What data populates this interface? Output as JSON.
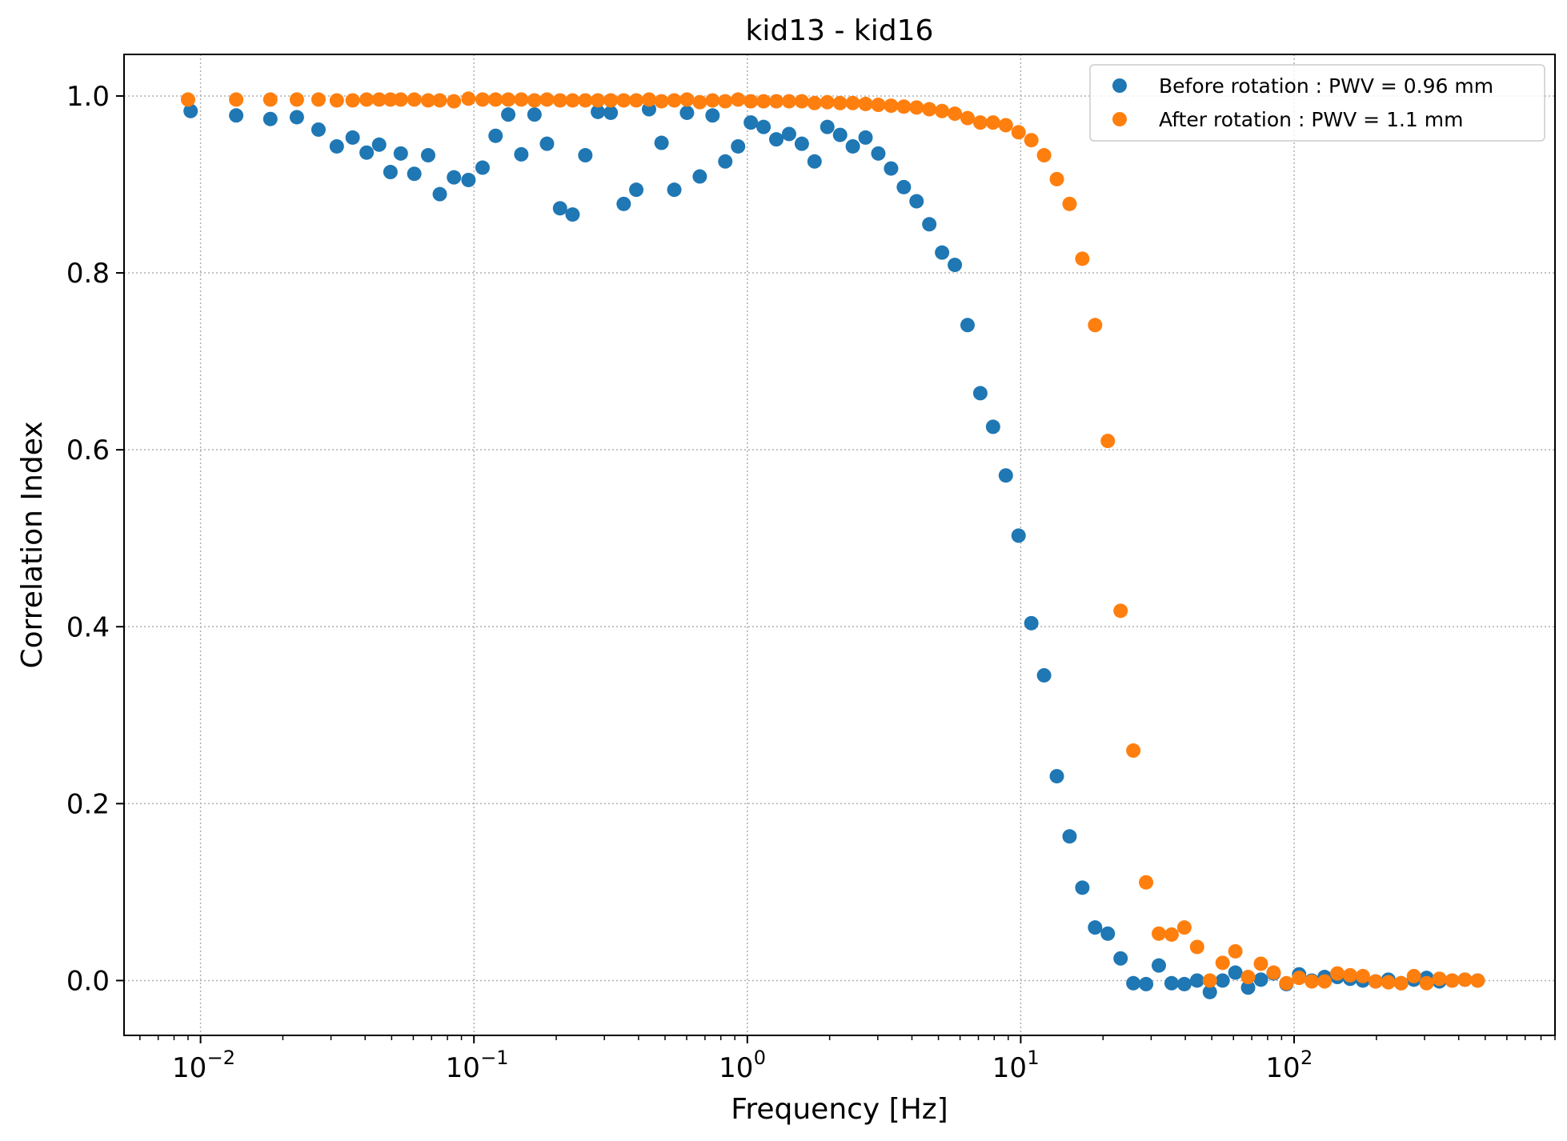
{
  "chart_data": {
    "type": "scatter",
    "title": "kid13 - kid16",
    "xlabel": "Frequency [Hz]",
    "ylabel": "Correlation Index",
    "xscale": "log",
    "xlim": [
      0.00525,
      900
    ],
    "ylim": [
      -0.062,
      1.047
    ],
    "grid": true,
    "legend_position": "top-right",
    "x_tick_labels": [
      {
        "value": 0.01,
        "base": "10",
        "exp": "−2"
      },
      {
        "value": 0.1,
        "base": "10",
        "exp": "−1"
      },
      {
        "value": 1,
        "base": "10",
        "exp": "0"
      },
      {
        "value": 10,
        "base": "10",
        "exp": "1"
      },
      {
        "value": 100,
        "base": "10",
        "exp": "2"
      }
    ],
    "y_ticks": [
      0.0,
      0.2,
      0.4,
      0.6,
      0.8,
      1.0
    ],
    "y_tick_labels": [
      "0.0",
      "0.2",
      "0.4",
      "0.6",
      "0.8",
      "1.0"
    ],
    "series": [
      {
        "name": "Before rotation : PWV = 0.96 mm",
        "color": "#1f77b4",
        "points": [
          [
            0.0092,
            0.983
          ],
          [
            0.0135,
            0.978
          ],
          [
            0.018,
            0.974
          ],
          [
            0.0225,
            0.976
          ],
          [
            0.027,
            0.962
          ],
          [
            0.0315,
            0.943
          ],
          [
            0.036,
            0.953
          ],
          [
            0.0405,
            0.936
          ],
          [
            0.045,
            0.945
          ],
          [
            0.0495,
            0.914
          ],
          [
            0.054,
            0.935
          ],
          [
            0.0605,
            0.912
          ],
          [
            0.068,
            0.933
          ],
          [
            0.075,
            0.889
          ],
          [
            0.0845,
            0.908
          ],
          [
            0.0955,
            0.905
          ],
          [
            0.1075,
            0.919
          ],
          [
            0.12,
            0.955
          ],
          [
            0.1335,
            0.979
          ],
          [
            0.149,
            0.934
          ],
          [
            0.1665,
            0.979
          ],
          [
            0.185,
            0.946
          ],
          [
            0.2065,
            0.873
          ],
          [
            0.2295,
            0.866
          ],
          [
            0.2555,
            0.933
          ],
          [
            0.284,
            0.982
          ],
          [
            0.3165,
            0.981
          ],
          [
            0.353,
            0.878
          ],
          [
            0.3925,
            0.894
          ],
          [
            0.437,
            0.985
          ],
          [
            0.4855,
            0.947
          ],
          [
            0.5405,
            0.894
          ],
          [
            0.6015,
            0.981
          ],
          [
            0.67,
            0.909
          ],
          [
            0.746,
            0.978
          ],
          [
            0.8305,
            0.926
          ],
          [
            0.925,
            0.943
          ],
          [
            1.03,
            0.97
          ],
          [
            1.1465,
            0.965
          ],
          [
            1.2765,
            0.951
          ],
          [
            1.421,
            0.957
          ],
          [
            1.5825,
            0.946
          ],
          [
            1.7615,
            0.926
          ],
          [
            1.9615,
            0.965
          ],
          [
            2.184,
            0.956
          ],
          [
            2.431,
            0.943
          ],
          [
            2.7065,
            0.953
          ],
          [
            3.0135,
            0.935
          ],
          [
            3.3555,
            0.918
          ],
          [
            3.736,
            0.897
          ],
          [
            4.159,
            0.881
          ],
          [
            4.63,
            0.855
          ],
          [
            5.1555,
            0.823
          ],
          [
            5.7405,
            0.809
          ],
          [
            6.391,
            0.741
          ],
          [
            7.115,
            0.664
          ],
          [
            7.922,
            0.626
          ],
          [
            8.8205,
            0.571
          ],
          [
            9.8205,
            0.503
          ],
          [
            10.934,
            0.404
          ],
          [
            12.173,
            0.345
          ],
          [
            13.553,
            0.231
          ],
          [
            15.09,
            0.163
          ],
          [
            16.8,
            0.105
          ],
          [
            18.706,
            0.06
          ],
          [
            20.826,
            0.053
          ],
          [
            23.188,
            0.025
          ],
          [
            25.817,
            -0.003
          ],
          [
            28.744,
            -0.004
          ],
          [
            32.003,
            0.017
          ],
          [
            35.632,
            -0.003
          ],
          [
            39.672,
            -0.004
          ],
          [
            44.17,
            0.0
          ],
          [
            49.179,
            -0.013
          ],
          [
            54.754,
            0.0
          ],
          [
            60.963,
            0.009
          ],
          [
            67.875,
            -0.008
          ],
          [
            75.571,
            0.001
          ],
          [
            84.14,
            0.008
          ],
          [
            93.679,
            -0.004
          ],
          [
            104.3,
            0.007
          ],
          [
            116.13,
            0.0
          ],
          [
            129.29,
            0.004
          ],
          [
            143.95,
            0.004
          ],
          [
            160.28,
            0.002
          ],
          [
            178.45,
            0.0
          ],
          [
            198.68,
            -0.001
          ],
          [
            221.21,
            0.001
          ],
          [
            246.29,
            -0.003
          ],
          [
            274.22,
            0.001
          ],
          [
            305.31,
            0.003
          ],
          [
            339.93,
            -0.001
          ],
          [
            378.47,
            0.0
          ],
          [
            421.38,
            0.001
          ],
          [
            469.16,
            0.0
          ]
        ]
      },
      {
        "name": "After rotation : PWV = 1.1 mm",
        "color": "#ff7f0e",
        "points": [
          [
            0.009,
            0.996
          ],
          [
            0.0135,
            0.996
          ],
          [
            0.018,
            0.996
          ],
          [
            0.0225,
            0.996
          ],
          [
            0.027,
            0.996
          ],
          [
            0.0315,
            0.995
          ],
          [
            0.036,
            0.995
          ],
          [
            0.0405,
            0.996
          ],
          [
            0.045,
            0.996
          ],
          [
            0.0495,
            0.996
          ],
          [
            0.054,
            0.996
          ],
          [
            0.0605,
            0.996
          ],
          [
            0.068,
            0.995
          ],
          [
            0.075,
            0.995
          ],
          [
            0.0845,
            0.994
          ],
          [
            0.0955,
            0.997
          ],
          [
            0.1075,
            0.996
          ],
          [
            0.12,
            0.996
          ],
          [
            0.1335,
            0.996
          ],
          [
            0.149,
            0.996
          ],
          [
            0.1665,
            0.995
          ],
          [
            0.185,
            0.996
          ],
          [
            0.2065,
            0.995
          ],
          [
            0.2295,
            0.995
          ],
          [
            0.2555,
            0.995
          ],
          [
            0.284,
            0.995
          ],
          [
            0.3165,
            0.995
          ],
          [
            0.353,
            0.995
          ],
          [
            0.3925,
            0.995
          ],
          [
            0.437,
            0.996
          ],
          [
            0.4855,
            0.994
          ],
          [
            0.5405,
            0.995
          ],
          [
            0.6015,
            0.996
          ],
          [
            0.67,
            0.993
          ],
          [
            0.746,
            0.995
          ],
          [
            0.8305,
            0.994
          ],
          [
            0.925,
            0.996
          ],
          [
            1.03,
            0.994
          ],
          [
            1.1465,
            0.994
          ],
          [
            1.2765,
            0.994
          ],
          [
            1.421,
            0.994
          ],
          [
            1.5825,
            0.994
          ],
          [
            1.7615,
            0.992
          ],
          [
            1.9615,
            0.993
          ],
          [
            2.184,
            0.992
          ],
          [
            2.431,
            0.992
          ],
          [
            2.7065,
            0.991
          ],
          [
            3.0135,
            0.99
          ],
          [
            3.3555,
            0.989
          ],
          [
            3.736,
            0.988
          ],
          [
            4.159,
            0.987
          ],
          [
            4.63,
            0.985
          ],
          [
            5.1555,
            0.983
          ],
          [
            5.7405,
            0.98
          ],
          [
            6.391,
            0.975
          ],
          [
            7.115,
            0.97
          ],
          [
            7.922,
            0.97
          ],
          [
            8.8205,
            0.967
          ],
          [
            9.8205,
            0.959
          ],
          [
            10.934,
            0.95
          ],
          [
            12.173,
            0.933
          ],
          [
            13.553,
            0.906
          ],
          [
            15.09,
            0.878
          ],
          [
            16.8,
            0.816
          ],
          [
            18.706,
            0.741
          ],
          [
            20.826,
            0.61
          ],
          [
            23.188,
            0.418
          ],
          [
            25.817,
            0.26
          ],
          [
            28.744,
            0.111
          ],
          [
            32.003,
            0.053
          ],
          [
            35.632,
            0.052
          ],
          [
            39.672,
            0.06
          ],
          [
            44.17,
            0.038
          ],
          [
            49.179,
            0.0
          ],
          [
            54.754,
            0.02
          ],
          [
            60.963,
            0.033
          ],
          [
            67.875,
            0.004
          ],
          [
            75.571,
            0.019
          ],
          [
            84.14,
            0.009
          ],
          [
            93.679,
            -0.003
          ],
          [
            104.3,
            0.003
          ],
          [
            116.13,
            -0.001
          ],
          [
            129.29,
            -0.001
          ],
          [
            143.95,
            0.008
          ],
          [
            160.28,
            0.006
          ],
          [
            178.45,
            0.005
          ],
          [
            198.68,
            -0.001
          ],
          [
            221.21,
            -0.002
          ],
          [
            246.29,
            -0.003
          ],
          [
            274.22,
            0.005
          ],
          [
            305.31,
            -0.003
          ],
          [
            339.93,
            0.002
          ],
          [
            378.47,
            0.0
          ],
          [
            421.38,
            0.001
          ],
          [
            469.16,
            0.0
          ]
        ]
      }
    ]
  }
}
